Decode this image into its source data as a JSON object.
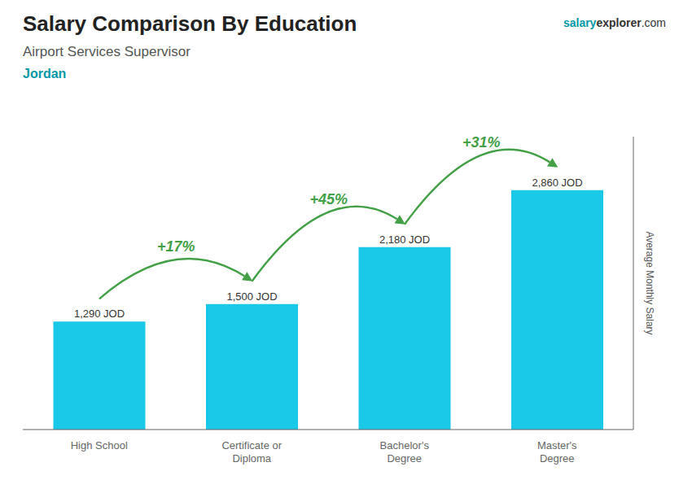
{
  "chart_data": {
    "type": "bar",
    "title": "Salary Comparison By Education",
    "subtitle": [
      "Airport Services Supervisor",
      "Jordan"
    ],
    "ylabel": "Average Monthly Salary",
    "categories": [
      "High School",
      "Certificate or\nDiploma",
      "Bachelor's\nDegree",
      "Master's\nDegree"
    ],
    "values": [
      1290,
      1500,
      2180,
      2860
    ],
    "value_labels": [
      "1,290 JOD",
      "1,500 JOD",
      "2,180 JOD",
      "2,860 JOD"
    ],
    "data_labels": true,
    "color": "#1ac8e8",
    "ylim": [
      0,
      3500
    ],
    "tick_labels": "x",
    "grid": false,
    "annotations": {
      "changes": [
        "+17%",
        "+45%",
        "+31%"
      ],
      "watermark": [
        "salary",
        "explorer",
        ".com"
      ]
    }
  }
}
